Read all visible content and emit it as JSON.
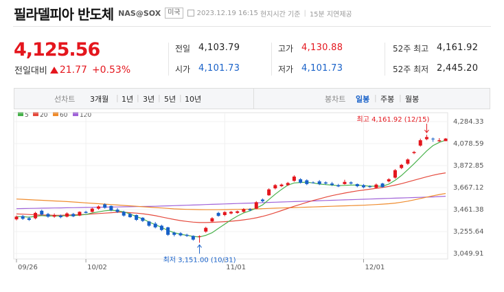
{
  "header": {
    "title": "필라델피아 반도체",
    "code": "NAS@SOX",
    "market_badge": "미국",
    "datetime": "2023.12.19 16:15",
    "time_basis": "현지시간 기준",
    "delay_note": "15분 지연제공"
  },
  "quote": {
    "price": "4,125.56",
    "change_label": "전일대비",
    "change": "21.77",
    "change_pct": "+0.53%",
    "direction": "up"
  },
  "stats": {
    "prev_label": "전일",
    "prev_value": "4,103.79",
    "open_label": "시가",
    "open_value": "4,101.73",
    "high_label": "고가",
    "high_value": "4,130.88",
    "low_label": "저가",
    "low_value": "4,101.73",
    "w52_high_label": "52주 최고",
    "w52_high_value": "4,161.92",
    "w52_low_label": "52주 최저",
    "w52_low_value": "2,445.20"
  },
  "toolbar": {
    "line_label": "선차트",
    "periods": [
      "3개월",
      "1년",
      "3년",
      "5년",
      "10년"
    ],
    "candle_label": "봉차트",
    "candle_periods": [
      "일봉",
      "주봉",
      "월봉"
    ],
    "active_candle": "일봉"
  },
  "colors": {
    "up": "#e4161d",
    "down": "#1760c8",
    "ma5": "#47b14a",
    "ma20": "#e5493c",
    "ma60": "#ef8b2c",
    "ma120": "#a062d8"
  },
  "chart_data": {
    "type": "candlestick",
    "legend": [
      "5",
      "20",
      "60",
      "120"
    ],
    "y_ticks": [
      "4,284.33",
      "4,078.59",
      "3,872.85",
      "3,667.12",
      "3,461.38",
      "3,255.64",
      "3,049.91"
    ],
    "x_ticks": [
      "09/26",
      "10/02",
      "11/01",
      "12/01"
    ],
    "ylim": [
      3049.91,
      4284.33
    ],
    "high_annotation": "최고 4,161.92 (12/15)",
    "low_annotation": "최저 3,151.00 (10/31)",
    "candles": [
      {
        "o": 3370,
        "c": 3395,
        "h": 3405,
        "l": 3360
      },
      {
        "o": 3400,
        "c": 3375,
        "h": 3410,
        "l": 3365
      },
      {
        "o": 3380,
        "c": 3365,
        "h": 3395,
        "l": 3355
      },
      {
        "o": 3380,
        "c": 3430,
        "h": 3440,
        "l": 3370
      },
      {
        "o": 3450,
        "c": 3415,
        "h": 3460,
        "l": 3405
      },
      {
        "o": 3420,
        "c": 3395,
        "h": 3430,
        "l": 3385
      },
      {
        "o": 3395,
        "c": 3410,
        "h": 3425,
        "l": 3385
      },
      {
        "o": 3405,
        "c": 3390,
        "h": 3415,
        "l": 3380
      },
      {
        "o": 3395,
        "c": 3425,
        "h": 3435,
        "l": 3388
      },
      {
        "o": 3420,
        "c": 3398,
        "h": 3430,
        "l": 3390
      },
      {
        "o": 3405,
        "c": 3440,
        "h": 3445,
        "l": 3400
      },
      {
        "o": 3440,
        "c": 3430,
        "h": 3450,
        "l": 3425
      },
      {
        "o": 3440,
        "c": 3470,
        "h": 3478,
        "l": 3435
      },
      {
        "o": 3470,
        "c": 3490,
        "h": 3500,
        "l": 3460
      },
      {
        "o": 3510,
        "c": 3478,
        "h": 3520,
        "l": 3470
      },
      {
        "o": 3495,
        "c": 3455,
        "h": 3500,
        "l": 3445
      },
      {
        "o": 3460,
        "c": 3440,
        "h": 3475,
        "l": 3430
      },
      {
        "o": 3440,
        "c": 3405,
        "h": 3450,
        "l": 3395
      },
      {
        "o": 3420,
        "c": 3390,
        "h": 3428,
        "l": 3385
      },
      {
        "o": 3410,
        "c": 3365,
        "h": 3415,
        "l": 3355
      },
      {
        "o": 3385,
        "c": 3355,
        "h": 3390,
        "l": 3345
      },
      {
        "o": 3350,
        "c": 3310,
        "h": 3355,
        "l": 3300
      },
      {
        "o": 3330,
        "c": 3295,
        "h": 3345,
        "l": 3285
      },
      {
        "o": 3310,
        "c": 3270,
        "h": 3320,
        "l": 3260
      },
      {
        "o": 3295,
        "c": 3225,
        "h": 3300,
        "l": 3215
      },
      {
        "o": 3245,
        "c": 3225,
        "h": 3255,
        "l": 3210
      },
      {
        "o": 3240,
        "c": 3220,
        "h": 3250,
        "l": 3210
      },
      {
        "o": 3225,
        "c": 3215,
        "h": 3235,
        "l": 3205
      },
      {
        "o": 3215,
        "c": 3180,
        "h": 3220,
        "l": 3170
      },
      {
        "o": 3205,
        "c": 3212,
        "h": 3220,
        "l": 3151
      },
      {
        "o": 3255,
        "c": 3290,
        "h": 3300,
        "l": 3245
      },
      {
        "o": 3350,
        "c": 3380,
        "h": 3390,
        "l": 3345
      },
      {
        "o": 3430,
        "c": 3402,
        "h": 3440,
        "l": 3395
      },
      {
        "o": 3410,
        "c": 3438,
        "h": 3445,
        "l": 3400
      },
      {
        "o": 3425,
        "c": 3440,
        "h": 3448,
        "l": 3418
      },
      {
        "o": 3430,
        "c": 3445,
        "h": 3452,
        "l": 3422
      },
      {
        "o": 3440,
        "c": 3465,
        "h": 3475,
        "l": 3432
      },
      {
        "o": 3465,
        "c": 3455,
        "h": 3475,
        "l": 3445
      },
      {
        "o": 3470,
        "c": 3530,
        "h": 3540,
        "l": 3465
      },
      {
        "o": 3555,
        "c": 3540,
        "h": 3565,
        "l": 3530
      },
      {
        "o": 3595,
        "c": 3650,
        "h": 3660,
        "l": 3590
      },
      {
        "o": 3660,
        "c": 3690,
        "h": 3700,
        "l": 3650
      },
      {
        "o": 3680,
        "c": 3695,
        "h": 3705,
        "l": 3672
      },
      {
        "o": 3690,
        "c": 3710,
        "h": 3720,
        "l": 3683
      },
      {
        "o": 3730,
        "c": 3770,
        "h": 3782,
        "l": 3722
      },
      {
        "o": 3745,
        "c": 3712,
        "h": 3755,
        "l": 3705
      },
      {
        "o": 3735,
        "c": 3700,
        "h": 3745,
        "l": 3690
      },
      {
        "o": 3715,
        "c": 3712,
        "h": 3725,
        "l": 3705
      },
      {
        "o": 3725,
        "c": 3700,
        "h": 3738,
        "l": 3690
      },
      {
        "o": 3715,
        "c": 3705,
        "h": 3725,
        "l": 3695
      },
      {
        "o": 3705,
        "c": 3692,
        "h": 3720,
        "l": 3682
      },
      {
        "o": 3690,
        "c": 3678,
        "h": 3702,
        "l": 3672
      },
      {
        "o": 3700,
        "c": 3720,
        "h": 3740,
        "l": 3695
      },
      {
        "o": 3715,
        "c": 3705,
        "h": 3725,
        "l": 3696
      },
      {
        "o": 3700,
        "c": 3680,
        "h": 3705,
        "l": 3670
      },
      {
        "o": 3690,
        "c": 3670,
        "h": 3700,
        "l": 3660
      },
      {
        "o": 3680,
        "c": 3672,
        "h": 3688,
        "l": 3665
      },
      {
        "o": 3665,
        "c": 3695,
        "h": 3705,
        "l": 3660
      },
      {
        "o": 3705,
        "c": 3672,
        "h": 3712,
        "l": 3665
      },
      {
        "o": 3725,
        "c": 3745,
        "h": 3755,
        "l": 3715
      },
      {
        "o": 3760,
        "c": 3830,
        "h": 3840,
        "l": 3750
      },
      {
        "o": 3850,
        "c": 3880,
        "h": 3888,
        "l": 3840
      },
      {
        "o": 3890,
        "c": 3930,
        "h": 3940,
        "l": 3880
      },
      {
        "o": 3990,
        "c": 4000,
        "h": 4010,
        "l": 3980
      },
      {
        "o": 4060,
        "c": 4110,
        "h": 4125,
        "l": 4050
      },
      {
        "o": 4120,
        "c": 4140,
        "h": 4161.92,
        "l": 4110
      },
      {
        "o": 4125,
        "c": 4120,
        "h": 4135,
        "l": 4095
      },
      {
        "o": 4100,
        "c": 4110,
        "h": 4130,
        "l": 4095
      },
      {
        "o": 4101.73,
        "c": 4125.56,
        "h": 4130.88,
        "l": 4101.73
      }
    ],
    "ma5": [
      3395,
      3395,
      3390,
      3398,
      3405,
      3400,
      3402,
      3400,
      3405,
      3405,
      3410,
      3415,
      3430,
      3440,
      3450,
      3455,
      3450,
      3440,
      3420,
      3395,
      3375,
      3345,
      3320,
      3295,
      3265,
      3245,
      3230,
      3220,
      3210,
      3205,
      3220,
      3245,
      3285,
      3325,
      3365,
      3400,
      3430,
      3450,
      3475,
      3505,
      3555,
      3605,
      3650,
      3690,
      3710,
      3715,
      3718,
      3710,
      3700,
      3695,
      3690,
      3685,
      3688,
      3690,
      3690,
      3685,
      3680,
      3680,
      3680,
      3700,
      3735,
      3780,
      3835,
      3890,
      3950,
      4010,
      4060,
      4090,
      4110
    ],
    "ma20": [
      3420,
      3418,
      3415,
      3412,
      3410,
      3410,
      3408,
      3408,
      3410,
      3412,
      3414,
      3416,
      3420,
      3424,
      3428,
      3432,
      3436,
      3436,
      3432,
      3428,
      3422,
      3414,
      3404,
      3392,
      3380,
      3368,
      3358,
      3350,
      3344,
      3340,
      3340,
      3342,
      3345,
      3348,
      3352,
      3358,
      3365,
      3373,
      3384,
      3398,
      3414,
      3432,
      3452,
      3472,
      3492,
      3510,
      3528,
      3546,
      3562,
      3578,
      3592,
      3604,
      3616,
      3626,
      3636,
      3644,
      3652,
      3660,
      3668,
      3678,
      3690,
      3704,
      3720,
      3736,
      3752,
      3768,
      3782,
      3795,
      3805
    ],
    "ma60": [
      3560,
      3557,
      3554,
      3551,
      3548,
      3545,
      3542,
      3539,
      3536,
      3532,
      3528,
      3524,
      3520,
      3516,
      3512,
      3508,
      3504,
      3500,
      3496,
      3492,
      3488,
      3484,
      3480,
      3476,
      3472,
      3468,
      3465,
      3463,
      3462,
      3461,
      3460,
      3460,
      3460,
      3461,
      3462,
      3463,
      3464,
      3466,
      3468,
      3470,
      3472,
      3474,
      3476,
      3478,
      3480,
      3482,
      3484,
      3486,
      3488,
      3490,
      3492,
      3494,
      3496,
      3498,
      3500,
      3502,
      3505,
      3508,
      3512,
      3516,
      3522,
      3530,
      3540,
      3552,
      3565,
      3578,
      3590,
      3602,
      3612
    ],
    "ma120": [
      3470,
      3471,
      3472,
      3473,
      3474,
      3475,
      3476,
      3477,
      3478,
      3479,
      3480,
      3481,
      3482,
      3483,
      3484,
      3485,
      3486,
      3487,
      3488,
      3489,
      3490,
      3491,
      3492,
      3494,
      3496,
      3498,
      3500,
      3502,
      3504,
      3506,
      3508,
      3510,
      3512,
      3514,
      3516,
      3518,
      3520,
      3522,
      3524,
      3526,
      3528,
      3530,
      3532,
      3534,
      3536,
      3538,
      3540,
      3542,
      3544,
      3546,
      3548,
      3550,
      3552,
      3554,
      3556,
      3558,
      3560,
      3562,
      3564,
      3566,
      3568,
      3570,
      3572,
      3574,
      3576,
      3578,
      3580,
      3583,
      3586
    ]
  }
}
